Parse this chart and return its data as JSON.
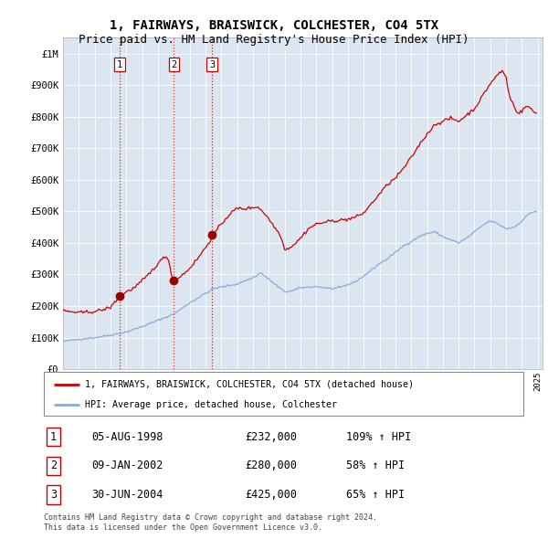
{
  "title": "1, FAIRWAYS, BRAISWICK, COLCHESTER, CO4 5TX",
  "subtitle": "Price paid vs. HM Land Registry's House Price Index (HPI)",
  "title_fontsize": 10,
  "subtitle_fontsize": 9,
  "background_color": "#dce6f0",
  "plot_bg_color": "#dce6f0",
  "red_line_color": "#cc0000",
  "blue_line_color": "#88aadd",
  "sale_prices": [
    232000,
    280000,
    425000
  ],
  "sale_labels": [
    "1",
    "2",
    "3"
  ],
  "sale_date_strs": [
    "05-AUG-1998",
    "09-JAN-2002",
    "30-JUN-2004"
  ],
  "sale_hpi_pct": [
    "109%",
    "58%",
    "65%"
  ],
  "legend_label_red": "1, FAIRWAYS, BRAISWICK, COLCHESTER, CO4 5TX (detached house)",
  "legend_label_blue": "HPI: Average price, detached house, Colchester",
  "footer_text": "Contains HM Land Registry data © Crown copyright and database right 2024.\nThis data is licensed under the Open Government Licence v3.0.",
  "ylim": [
    0,
    1050000
  ],
  "yticks": [
    0,
    100000,
    200000,
    300000,
    400000,
    500000,
    600000,
    700000,
    800000,
    900000,
    1000000
  ],
  "ytick_labels": [
    "£0",
    "£100K",
    "£200K",
    "£300K",
    "£400K",
    "£500K",
    "£600K",
    "£700K",
    "£800K",
    "£900K",
    "£1M"
  ]
}
